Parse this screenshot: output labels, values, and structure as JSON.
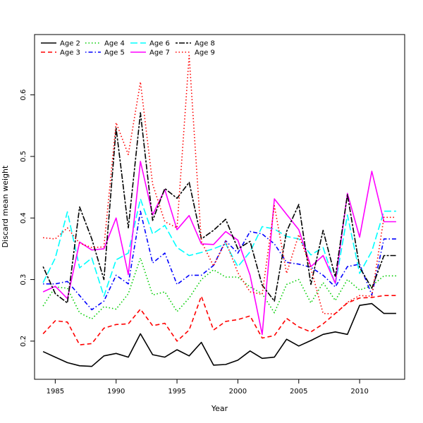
{
  "chart_data": {
    "type": "line",
    "title": "",
    "xlabel": "Year",
    "ylabel": "Discard mean weight",
    "xlim": [
      1983.3,
      2013.7
    ],
    "ylim": [
      0.138,
      0.698
    ],
    "x_ticks": [
      1985,
      1990,
      1995,
      2000,
      2005,
      2010
    ],
    "y_ticks": [
      0.2,
      0.3,
      0.4,
      0.5,
      0.6
    ],
    "x_tick_labels": [
      "1985",
      "1990",
      "1995",
      "2000",
      "2005",
      "2010"
    ],
    "y_tick_labels": [
      "0.2",
      "0.3",
      "0.4",
      "0.5",
      "0.6"
    ],
    "grid": false,
    "legend_position": "top-left",
    "x": [
      1984,
      1985,
      1986,
      1987,
      1988,
      1989,
      1990,
      1991,
      1992,
      1993,
      1994,
      1995,
      1996,
      1997,
      1998,
      1999,
      2000,
      2001,
      2002,
      2003,
      2004,
      2005,
      2006,
      2007,
      2008,
      2009,
      2010,
      2011,
      2012,
      2013
    ],
    "series": [
      {
        "name": "Age 2",
        "color": "#000000",
        "dash": "solid",
        "values": [
          0.183,
          0.174,
          0.165,
          0.16,
          0.159,
          0.176,
          0.18,
          0.174,
          0.212,
          0.178,
          0.174,
          0.186,
          0.176,
          0.198,
          0.161,
          0.162,
          0.169,
          0.184,
          0.172,
          0.174,
          0.203,
          0.192,
          0.201,
          0.211,
          0.215,
          0.211,
          0.258,
          0.261,
          0.245,
          0.245
        ]
      },
      {
        "name": "Age 3",
        "color": "#ff0000",
        "dash": "dashed",
        "values": [
          0.212,
          0.233,
          0.231,
          0.194,
          0.196,
          0.221,
          0.227,
          0.228,
          0.252,
          0.225,
          0.229,
          0.2,
          0.218,
          0.273,
          0.218,
          0.232,
          0.235,
          0.241,
          0.205,
          0.209,
          0.237,
          0.223,
          0.215,
          0.228,
          0.245,
          0.262,
          0.27,
          0.271,
          0.274,
          0.274
        ]
      },
      {
        "name": "Age 4",
        "color": "#00cd00",
        "dash": "dotted",
        "values": [
          0.257,
          0.288,
          0.286,
          0.246,
          0.236,
          0.256,
          0.252,
          0.277,
          0.335,
          0.275,
          0.28,
          0.248,
          0.27,
          0.3,
          0.316,
          0.304,
          0.304,
          0.288,
          0.277,
          0.246,
          0.292,
          0.3,
          0.262,
          0.295,
          0.266,
          0.3,
          0.283,
          0.29,
          0.306,
          0.306
        ]
      },
      {
        "name": "Age 5",
        "color": "#0000ff",
        "dash": "dotdash",
        "values": [
          0.293,
          0.293,
          0.297,
          0.274,
          0.251,
          0.265,
          0.307,
          0.293,
          0.411,
          0.327,
          0.343,
          0.292,
          0.307,
          0.307,
          0.323,
          0.363,
          0.343,
          0.378,
          0.374,
          0.358,
          0.328,
          0.325,
          0.32,
          0.307,
          0.288,
          0.321,
          0.325,
          0.275,
          0.366,
          0.366
        ]
      },
      {
        "name": "Age 6",
        "color": "#00ffff",
        "dash": "longdash",
        "values": [
          0.295,
          0.335,
          0.41,
          0.319,
          0.335,
          0.273,
          0.332,
          0.343,
          0.431,
          0.374,
          0.388,
          0.352,
          0.339,
          0.344,
          0.35,
          0.358,
          0.321,
          0.345,
          0.386,
          0.382,
          0.37,
          0.366,
          0.34,
          0.352,
          0.292,
          0.405,
          0.31,
          0.346,
          0.411,
          0.411
        ]
      },
      {
        "name": "Age 7",
        "color": "#ff00ff",
        "dash": "solid",
        "values": [
          0.28,
          0.289,
          0.269,
          0.361,
          0.348,
          0.35,
          0.4,
          0.308,
          0.492,
          0.405,
          0.446,
          0.381,
          0.404,
          0.358,
          0.357,
          0.378,
          0.364,
          0.307,
          0.211,
          0.431,
          0.406,
          0.381,
          0.321,
          0.339,
          0.294,
          0.44,
          0.369,
          0.476,
          0.394,
          0.394
        ]
      },
      {
        "name": "Age 8",
        "color": "#000000",
        "dash": "twodash",
        "values": [
          0.321,
          0.277,
          0.262,
          0.418,
          0.366,
          0.3,
          0.546,
          0.384,
          0.571,
          0.396,
          0.448,
          0.432,
          0.458,
          0.366,
          0.38,
          0.398,
          0.35,
          0.362,
          0.291,
          0.265,
          0.378,
          0.422,
          0.292,
          0.38,
          0.304,
          0.438,
          0.32,
          0.286,
          0.339,
          0.339
        ]
      },
      {
        "name": "Age 9",
        "color": "#ff0000",
        "dash": "dotted",
        "values": [
          0.368,
          0.366,
          0.384,
          0.359,
          0.352,
          0.353,
          0.555,
          0.503,
          0.621,
          0.455,
          0.394,
          0.384,
          0.664,
          0.362,
          0.322,
          0.362,
          0.311,
          0.28,
          0.276,
          0.42,
          0.31,
          0.373,
          0.318,
          0.245,
          0.244,
          0.263,
          0.274,
          0.273,
          0.401,
          0.401
        ]
      }
    ]
  }
}
